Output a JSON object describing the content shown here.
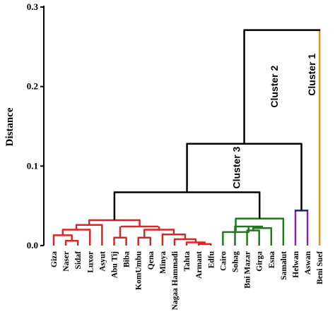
{
  "chart_data": {
    "type": "dendrogram",
    "ylabel": "Distance",
    "ylim": [
      0,
      0.3
    ],
    "yticks": [
      0.0,
      0.1,
      0.2,
      0.3
    ],
    "ytick_labels": [
      "0.0",
      "0.1",
      "0.2",
      "0.3"
    ],
    "leaves": [
      "Giza",
      "Naser",
      "Sidaf",
      "Luxor",
      "Asyut",
      "Abu Tij",
      "Biba",
      "KomUmbu",
      "Qena",
      "Minya",
      "Nagaa Hammadi",
      "Tahta",
      "Armant",
      "Edfu",
      "Cairo",
      "Sohag",
      "Bni Mazar",
      "Girga",
      "Esna",
      "Samalut",
      "Helwan",
      "Aswan",
      "Beni Suef"
    ],
    "colors": {
      "cluster_3": "#d62728",
      "cluster_2_sub": "#1f7a1f",
      "helwan_aswan": "#8e24aa",
      "beni_suef": "#f28c28",
      "links": "#000000",
      "pair": "#1a237e"
    },
    "merges": [
      {
        "id": "m1",
        "left": "Naser",
        "right": "Sidaf",
        "height": 0.006,
        "color": "#d62728"
      },
      {
        "id": "m2",
        "left": "Giza",
        "right": "m1",
        "height": 0.013,
        "color": "#d62728"
      },
      {
        "id": "m3",
        "left": "m2",
        "right": "Luxor",
        "height": 0.02,
        "color": "#d62728"
      },
      {
        "id": "m4",
        "left": "m3",
        "right": "Asyut",
        "height": 0.026,
        "color": "#d62728"
      },
      {
        "id": "m5",
        "left": "Abu Tij",
        "right": "Biba",
        "height": 0.01,
        "color": "#d62728"
      },
      {
        "id": "m6",
        "left": "KomUmbu",
        "right": "Qena",
        "height": 0.01,
        "color": "#d62728"
      },
      {
        "id": "m7",
        "left": "Armant",
        "right": "Edfu",
        "height": 0.002,
        "color": "#d62728"
      },
      {
        "id": "m8",
        "left": "Tahta",
        "right": "m7",
        "height": 0.004,
        "color": "#d62728"
      },
      {
        "id": "m9",
        "left": "Nagaa Hammadi",
        "right": "m8",
        "height": 0.008,
        "color": "#d62728"
      },
      {
        "id": "m10",
        "left": "Minya",
        "right": "m9",
        "height": 0.014,
        "color": "#d62728"
      },
      {
        "id": "m11",
        "left": "m6",
        "right": "m10",
        "height": 0.02,
        "color": "#d62728"
      },
      {
        "id": "m12",
        "left": "m11",
        "right": "m5",
        "height": 0.024,
        "color": "#d62728"
      },
      {
        "id": "m13",
        "left": "m4",
        "right": "m12",
        "height": 0.032,
        "color": "#d62728"
      },
      {
        "id": "m14",
        "left": "Bni Mazar",
        "right": "Girga",
        "height": 0.019,
        "color": "#1f7a1f"
      },
      {
        "id": "m15",
        "left": "m14",
        "right": "Esna",
        "height": 0.022,
        "color": "#1f7a1f"
      },
      {
        "id": "m16",
        "left": "Sohag",
        "right": "m15",
        "height": 0.024,
        "color": "#1f7a1f"
      },
      {
        "id": "m17",
        "left": "Cairo",
        "right": "m16",
        "height": 0.017,
        "color": "#1f7a1f"
      },
      {
        "id": "m18",
        "left": "m17",
        "right": "Samalut",
        "height": 0.034,
        "color": "#1f7a1f"
      },
      {
        "id": "m19",
        "left": "m13",
        "right": "m18",
        "height": 0.067,
        "color": "#000000"
      },
      {
        "id": "m20",
        "left": "Helwan",
        "right": "Aswan",
        "height": 0.044,
        "color": "#1a237e"
      },
      {
        "id": "m21",
        "left": "m19",
        "right": "m20",
        "height": 0.128,
        "color": "#000000"
      },
      {
        "id": "m22",
        "left": "m21",
        "right": "Beni Suef",
        "height": 0.271,
        "color": "#000000"
      }
    ],
    "leaf_stems": {
      "Helwan": "#8e24aa",
      "Aswan": "#8e24aa",
      "Beni Suef": "#f28c28"
    },
    "cluster_labels": [
      {
        "text": "Cluster 1",
        "height": 0.215,
        "near": "Beni Suef"
      },
      {
        "text": "Cluster 2",
        "height": 0.2,
        "near": "m22"
      },
      {
        "text": "Cluster 3",
        "height": 0.098,
        "near": "m21"
      }
    ]
  }
}
